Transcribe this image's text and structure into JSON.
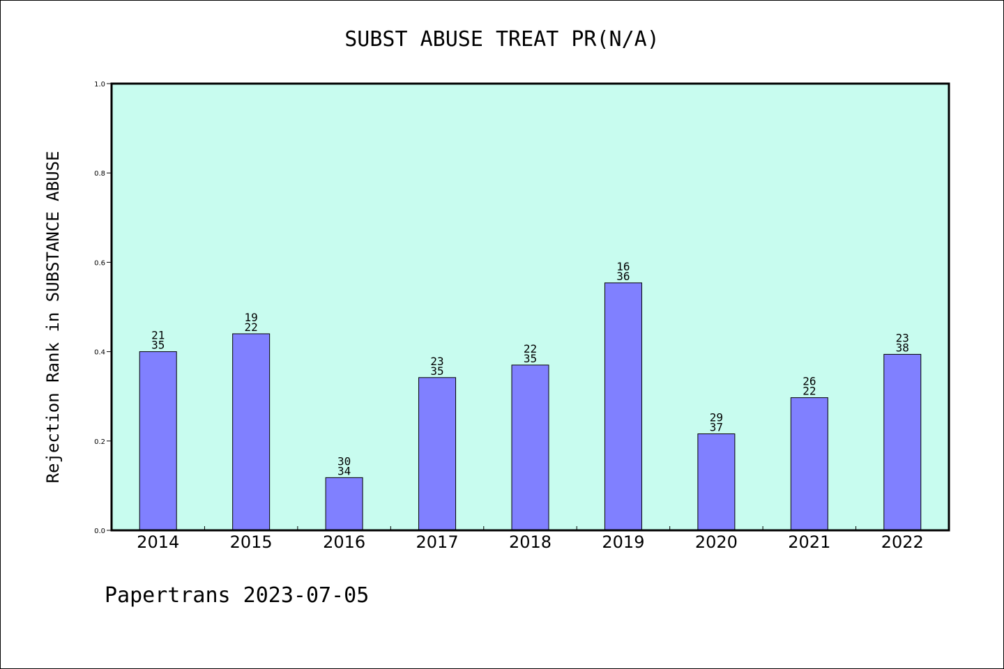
{
  "chart_data": {
    "type": "bar",
    "title": "SUBST ABUSE TREAT PR(N/A)",
    "xlabel": "",
    "ylabel": "Rejection Rank in SUBSTANCE ABUSE",
    "ylim": [
      0.0,
      1.0
    ],
    "yticks": [
      "0.0",
      "0.2",
      "0.4",
      "0.6",
      "0.8",
      "1.0"
    ],
    "categories": [
      "2014",
      "2015",
      "2016",
      "2017",
      "2018",
      "2019",
      "2020",
      "2021",
      "2022"
    ],
    "values": [
      0.4,
      0.44,
      0.118,
      0.342,
      0.37,
      0.554,
      0.216,
      0.297,
      0.394
    ],
    "bar_labels": [
      [
        "21",
        "35"
      ],
      [
        "19",
        "22"
      ],
      [
        "30",
        "34"
      ],
      [
        "23",
        "35"
      ],
      [
        "22",
        "35"
      ],
      [
        "16",
        "36"
      ],
      [
        "29",
        "37"
      ],
      [
        "26",
        "22"
      ],
      [
        "23",
        "38"
      ]
    ],
    "grid": false,
    "colors": {
      "plot_background": "#c8fcef",
      "bar_fill": "#8080ff",
      "bar_stroke": "#000000"
    }
  },
  "footer": "Papertrans 2023-07-05"
}
